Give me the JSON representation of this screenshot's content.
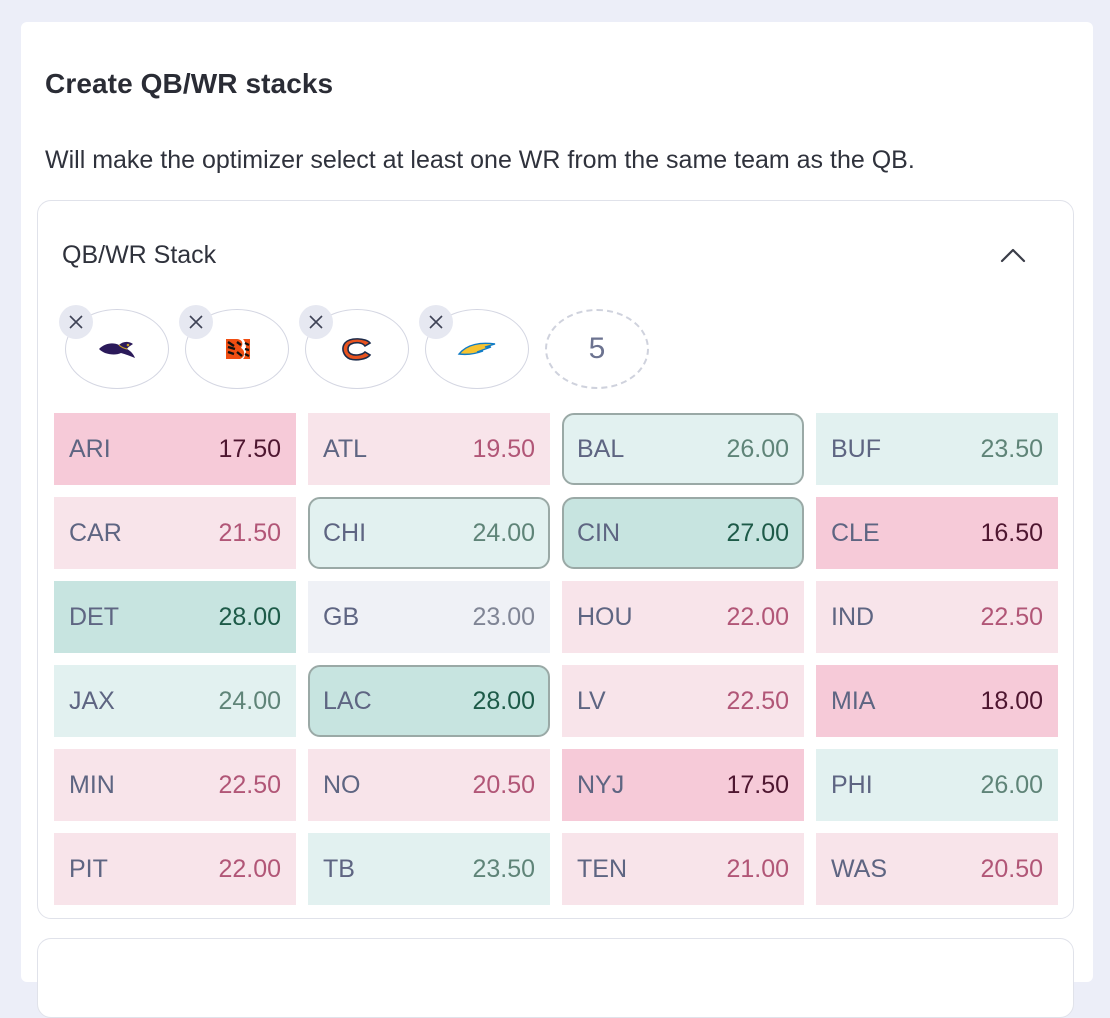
{
  "title": "Create QB/WR stacks",
  "description": "Will make the optimizer select at least one WR from the same team as the QB.",
  "panel": {
    "title": "QB/WR Stack",
    "stack_slots": [
      {
        "team": "BAL",
        "logo": "ravens-logo-icon"
      },
      {
        "team": "CIN",
        "logo": "bengals-logo-icon"
      },
      {
        "team": "CHI",
        "logo": "bears-logo-icon"
      },
      {
        "team": "LAC",
        "logo": "chargers-logo-icon"
      }
    ],
    "empty_slot_label": "5"
  },
  "teams": [
    {
      "abbr": "ARI",
      "value": "17.50",
      "tier": "pink-strong",
      "selected": false
    },
    {
      "abbr": "ATL",
      "value": "19.50",
      "tier": "pink-light",
      "selected": false
    },
    {
      "abbr": "BAL",
      "value": "26.00",
      "tier": "teal-light",
      "selected": true
    },
    {
      "abbr": "BUF",
      "value": "23.50",
      "tier": "teal-light",
      "selected": false
    },
    {
      "abbr": "CAR",
      "value": "21.50",
      "tier": "pink-light",
      "selected": false
    },
    {
      "abbr": "CHI",
      "value": "24.00",
      "tier": "teal-light",
      "selected": true
    },
    {
      "abbr": "CIN",
      "value": "27.00",
      "tier": "teal-strong",
      "selected": true
    },
    {
      "abbr": "CLE",
      "value": "16.50",
      "tier": "pink-strong",
      "selected": false
    },
    {
      "abbr": "DET",
      "value": "28.00",
      "tier": "teal-strong",
      "selected": false
    },
    {
      "abbr": "GB",
      "value": "23.00",
      "tier": "gray",
      "selected": false
    },
    {
      "abbr": "HOU",
      "value": "22.00",
      "tier": "pink-light",
      "selected": false
    },
    {
      "abbr": "IND",
      "value": "22.50",
      "tier": "pink-light",
      "selected": false
    },
    {
      "abbr": "JAX",
      "value": "24.00",
      "tier": "teal-light",
      "selected": false
    },
    {
      "abbr": "LAC",
      "value": "28.00",
      "tier": "teal-strong",
      "selected": true
    },
    {
      "abbr": "LV",
      "value": "22.50",
      "tier": "pink-light",
      "selected": false
    },
    {
      "abbr": "MIA",
      "value": "18.00",
      "tier": "pink-strong",
      "selected": false
    },
    {
      "abbr": "MIN",
      "value": "22.50",
      "tier": "pink-light",
      "selected": false
    },
    {
      "abbr": "NO",
      "value": "20.50",
      "tier": "pink-light",
      "selected": false
    },
    {
      "abbr": "NYJ",
      "value": "17.50",
      "tier": "pink-strong",
      "selected": false
    },
    {
      "abbr": "PHI",
      "value": "26.00",
      "tier": "teal-light",
      "selected": false
    },
    {
      "abbr": "PIT",
      "value": "22.00",
      "tier": "pink-light",
      "selected": false
    },
    {
      "abbr": "TB",
      "value": "23.50",
      "tier": "teal-light",
      "selected": false
    },
    {
      "abbr": "TEN",
      "value": "21.00",
      "tier": "pink-light",
      "selected": false
    },
    {
      "abbr": "WAS",
      "value": "20.50",
      "tier": "pink-light",
      "selected": false
    }
  ]
}
